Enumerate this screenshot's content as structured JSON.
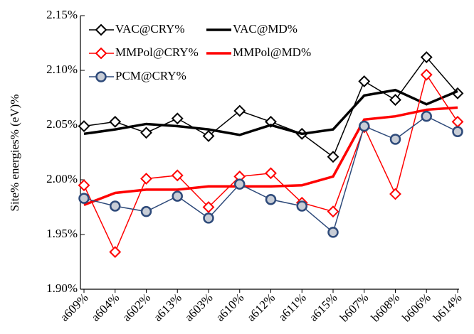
{
  "chart_data": {
    "type": "line",
    "y_label": "Site% energies% (eV)%",
    "categories": [
      "a609%",
      "a604%",
      "a602%",
      "a613%",
      "a603%",
      "a610%",
      "a612%",
      "a611%",
      "a615%",
      "b607%",
      "b608%",
      "b606%",
      "b614%"
    ],
    "series": [
      {
        "name": "VAC@CRY%",
        "color": "#000000",
        "marker": "diamond",
        "values": [
          2.049,
          2.053,
          2.043,
          2.056,
          2.04,
          2.063,
          2.053,
          2.042,
          2.021,
          2.09,
          2.073,
          2.112,
          2.079
        ]
      },
      {
        "name": "VAC@MD%",
        "color": "#000000",
        "marker": "none",
        "values": [
          2.042,
          2.046,
          2.051,
          2.049,
          2.046,
          2.041,
          2.05,
          2.042,
          2.046,
          2.077,
          2.082,
          2.069,
          2.081
        ]
      },
      {
        "name": "MMPol@CRY%",
        "color": "#ff0000",
        "marker": "diamond",
        "values": [
          1.995,
          1.934,
          2.001,
          2.004,
          1.975,
          2.003,
          2.006,
          1.979,
          1.971,
          2.048,
          1.987,
          2.096,
          2.053
        ]
      },
      {
        "name": "MMPol@MD%",
        "color": "#ff0000",
        "marker": "none",
        "values": [
          1.977,
          1.988,
          1.991,
          1.991,
          1.994,
          1.994,
          1.994,
          1.995,
          2.003,
          2.055,
          2.058,
          2.064,
          2.066
        ]
      },
      {
        "name": "PCM@CRY%",
        "color": "#2e4a7a",
        "marker": "circle",
        "values": [
          1.983,
          1.976,
          1.971,
          1.985,
          1.965,
          1.996,
          1.982,
          1.976,
          1.952,
          2.049,
          2.037,
          2.058,
          2.044
        ]
      }
    ],
    "ylim": [
      1.9,
      2.15
    ],
    "yticks": [
      {
        "value": 1.9,
        "label": "1.90%"
      },
      {
        "value": 1.95,
        "label": "1.95%"
      },
      {
        "value": 2.0,
        "label": "2.00%"
      },
      {
        "value": 2.05,
        "label": "2.05%"
      },
      {
        "value": 2.1,
        "label": "2.10%"
      },
      {
        "value": 2.15,
        "label": "2.15%"
      }
    ]
  }
}
